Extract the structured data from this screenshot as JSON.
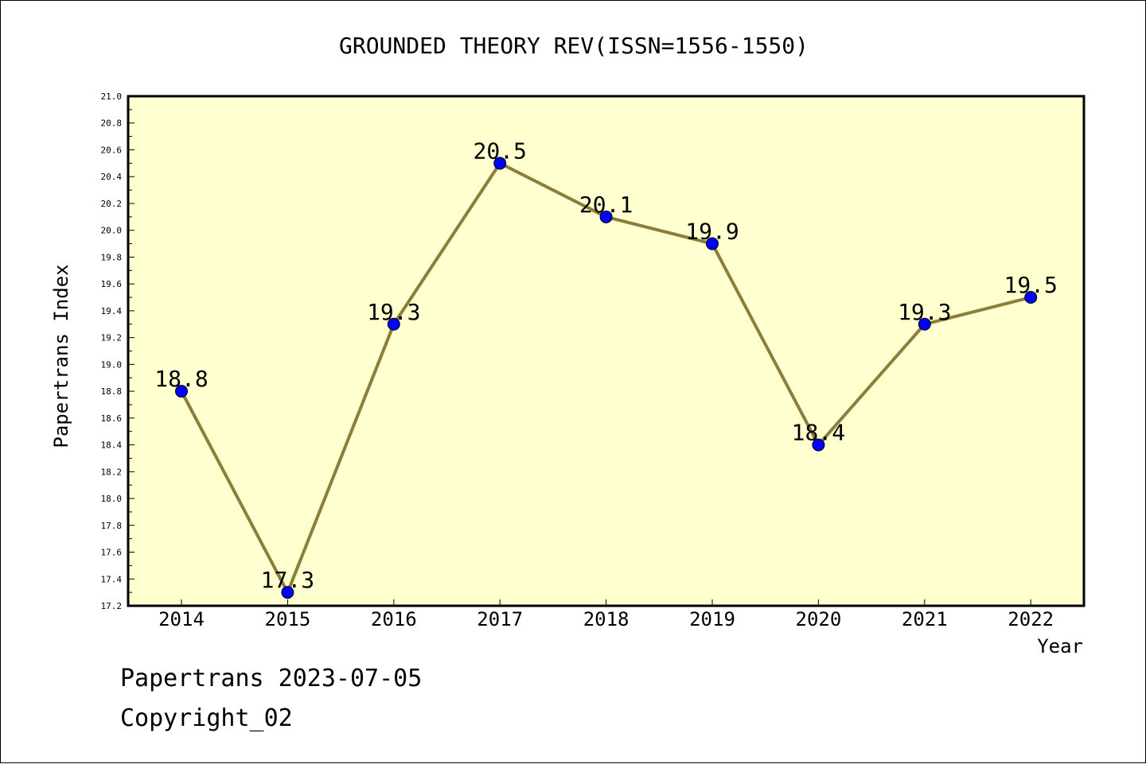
{
  "chart_data": {
    "type": "line",
    "title": "GROUNDED THEORY REV(ISSN=1556-1550)",
    "xlabel": "Year",
    "ylabel": "Papertrans Index",
    "categories": [
      "2014",
      "2015",
      "2016",
      "2017",
      "2018",
      "2019",
      "2020",
      "2021",
      "2022"
    ],
    "values": [
      18.8,
      17.3,
      19.3,
      20.5,
      20.1,
      19.9,
      18.4,
      19.3,
      19.5
    ],
    "data_labels": [
      "18.8",
      "17.3",
      "19.3",
      "20.5",
      "20.1",
      "19.9",
      "18.4",
      "19.3",
      "19.5"
    ],
    "ylim": [
      17.2,
      21.0
    ],
    "yticks": [
      "17.2",
      "17.4",
      "17.6",
      "17.8",
      "18.0",
      "18.2",
      "18.4",
      "18.6",
      "18.8",
      "19.0",
      "19.2",
      "19.4",
      "19.6",
      "19.8",
      "20.0",
      "20.2",
      "20.4",
      "20.6",
      "20.8",
      "21.0"
    ],
    "grid": false,
    "colors": {
      "plot_background": "#FFFFD0",
      "line": "#8B7D3A",
      "marker": "#0000FF"
    }
  },
  "footer": {
    "line1": "Papertrans 2023-07-05",
    "line2": "Copyright_02"
  }
}
